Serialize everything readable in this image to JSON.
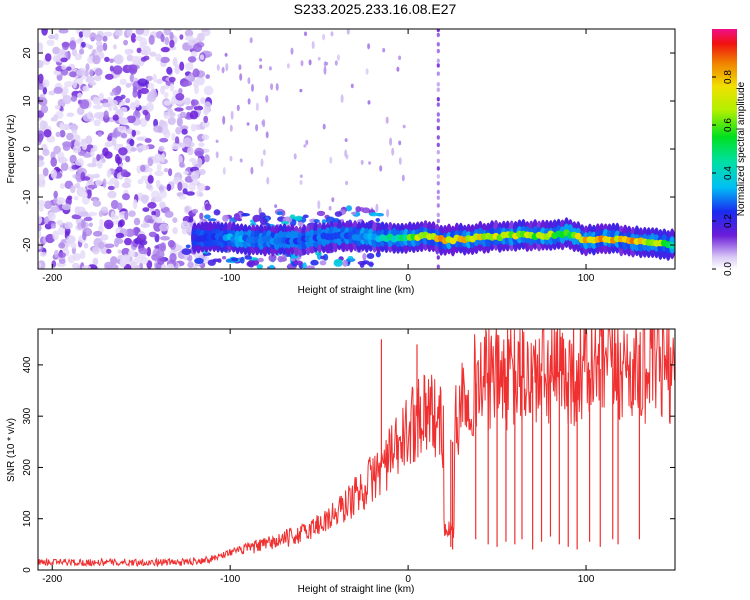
{
  "title": "S233.2025.233.16.08.E27",
  "colors": {
    "snr_line": "#f03030",
    "spectro_purple": "#7a2be0",
    "spectro_light": "#d9c4f5",
    "axis": "#000000"
  },
  "chart_data": [
    {
      "type": "heatmap",
      "xlabel": "Height of straight line (km)",
      "ylabel": "Frequency (Hz)",
      "xlim": [
        -208,
        150
      ],
      "ylim": [
        -25,
        25
      ],
      "xticks": [
        "-200",
        "-100",
        "0",
        "100"
      ],
      "yticks": [
        "20",
        "10",
        "0",
        "-10",
        "-20"
      ],
      "colorbar": {
        "label": "Normalized spectral amplitude",
        "range": [
          0,
          1
        ],
        "ticks": [
          "0.0",
          "0.2",
          "0.4",
          "0.6",
          "0.8"
        ],
        "colormap": "rainbow"
      },
      "ridge": {
        "description_values_only": true,
        "x": [
          -120,
          -100,
          -80,
          -60,
          -40,
          -20,
          0,
          10,
          20,
          40,
          60,
          80,
          90,
          100,
          110,
          120,
          135,
          150
        ],
        "freq_hz": [
          -18.5,
          -18.5,
          -19,
          -19,
          -18,
          -18.5,
          -18.5,
          -18,
          -19,
          -18.5,
          -18,
          -18,
          -17.5,
          -19,
          -18.5,
          -19,
          -19.5,
          -20
        ],
        "amplitude": [
          0.25,
          0.35,
          0.3,
          0.3,
          0.3,
          0.35,
          0.6,
          0.8,
          0.85,
          0.8,
          0.75,
          0.7,
          0.65,
          0.8,
          0.85,
          0.9,
          0.8,
          0.55
        ]
      },
      "noise_region": {
        "x_range": [
          -208,
          -112
        ],
        "freq_range": [
          -25,
          25
        ]
      },
      "vertical_streaks_x": [
        17
      ]
    },
    {
      "type": "line",
      "xlabel": "Height of straight line (km)",
      "ylabel": "SNR (10 * v/v)",
      "xlim": [
        -208,
        150
      ],
      "ylim": [
        0,
        470
      ],
      "xticks": [
        "-200",
        "-100",
        "0",
        "100"
      ],
      "yticks": [
        "0",
        "100",
        "200",
        "300",
        "400"
      ],
      "series": [
        {
          "x": [
            -208,
            -180,
            -150,
            -125,
            -110,
            -100,
            -80,
            -60,
            -40,
            -25,
            -15,
            -5,
            0,
            5,
            10,
            15,
            20,
            25,
            30,
            40,
            60,
            80,
            100,
            120,
            140,
            150
          ],
          "values": [
            15,
            15,
            15,
            15,
            22,
            35,
            50,
            70,
            110,
            160,
            200,
            240,
            270,
            300,
            320,
            300,
            270,
            250,
            340,
            370,
            375,
            380,
            390,
            395,
            395,
            390
          ]
        }
      ],
      "spikes": {
        "up_x": [
          -15,
          5
        ],
        "up_values": [
          450,
          440
        ],
        "down_x": [
          24,
          25,
          38,
          45,
          50,
          55,
          60,
          64,
          70,
          75,
          80,
          85,
          90,
          95,
          102,
          108,
          115,
          118,
          130
        ],
        "down_values": [
          45,
          40,
          60,
          50,
          45,
          55,
          50,
          60,
          40,
          55,
          65,
          50,
          45,
          40,
          55,
          45,
          60,
          50,
          60
        ]
      }
    }
  ]
}
